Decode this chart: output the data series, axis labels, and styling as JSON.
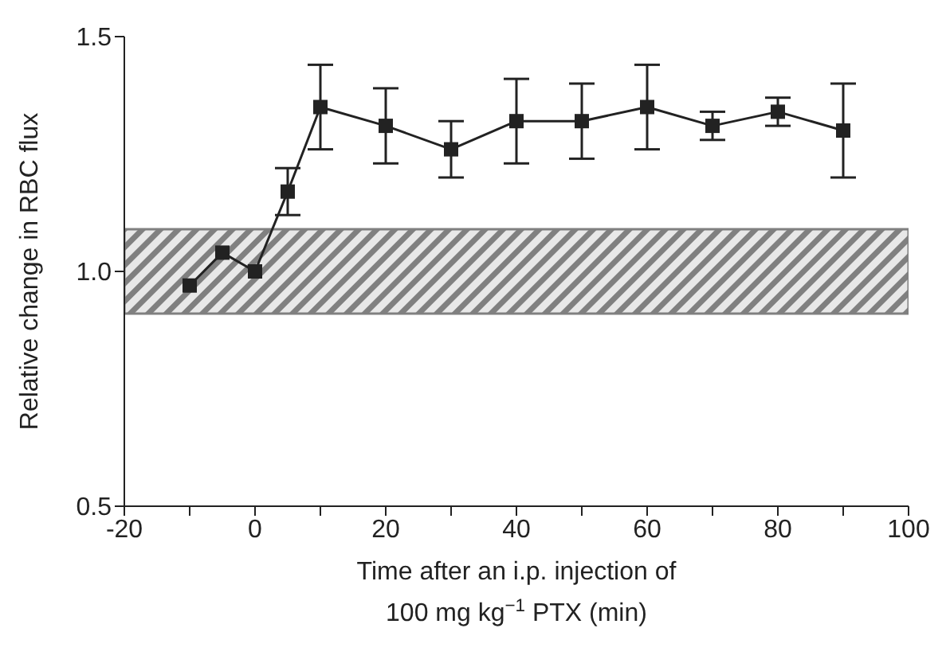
{
  "chart_data": {
    "type": "line",
    "xlabel": "Time after an i.p. injection of\n100 mg kg$^{−1}$ PTX (min)",
    "ylabel": "Relative change in RBC flux",
    "x": [
      -10,
      -5,
      0,
      5,
      10,
      20,
      30,
      40,
      50,
      60,
      70,
      80,
      90
    ],
    "series": [
      {
        "color": "#222222",
        "values": [
          0.97,
          1.04,
          1.0,
          1.17,
          1.35,
          1.31,
          1.26,
          1.32,
          1.32,
          1.35,
          1.31,
          1.34,
          1.3
        ],
        "errors": [
          null,
          null,
          null,
          0.05,
          0.09,
          0.08,
          0.06,
          0.09,
          0.08,
          0.09,
          0.03,
          0.03,
          0.1
        ]
      }
    ],
    "marker": "square",
    "line_style": "solid",
    "xlim": [
      -20,
      100
    ],
    "xticks": [
      -20,
      {
        "value": -10,
        "label": null
      },
      0,
      {
        "value": 10,
        "label": null
      },
      20,
      {
        "value": 30,
        "label": null
      },
      40,
      {
        "value": 50,
        "label": null
      },
      60,
      {
        "value": 70,
        "label": null
      },
      80,
      {
        "value": 90,
        "label": null
      },
      100
    ],
    "ylim": [
      0.5,
      1.5
    ],
    "yticks": [
      {
        "value": 0.5,
        "label": "0.5"
      },
      {
        "value": 1,
        "label": "1.0"
      },
      {
        "value": 1.5,
        "label": "1.5"
      }
    ],
    "bands": [
      {
        "axis": "y",
        "from": 0.91,
        "to": 1.09,
        "color": "#808080"
      }
    ],
    "grid": false,
    "legend": false
  }
}
